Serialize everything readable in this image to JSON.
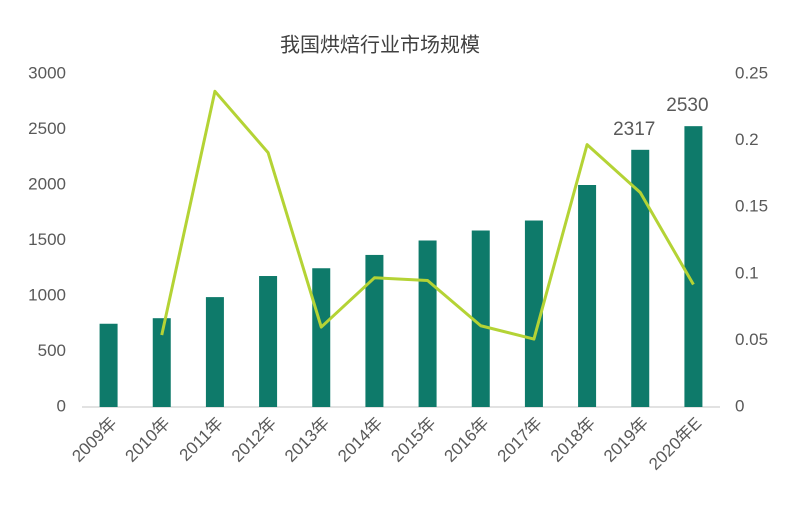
{
  "chart_data": {
    "type": "bar-line",
    "title": "我国烘焙行业市场规模",
    "categories": [
      "2009年",
      "2010年",
      "2011年",
      "2012年",
      "2013年",
      "2014年",
      "2015年",
      "2016年",
      "2017年",
      "2018年",
      "2019年",
      "2020年E"
    ],
    "series": [
      {
        "type": "bar",
        "color": "#0e7a6a",
        "values": [
          750,
          800,
          990,
          1180,
          1250,
          1370,
          1500,
          1590,
          1680,
          2000,
          2317,
          2530
        ],
        "value_labels": [
          null,
          null,
          null,
          null,
          null,
          null,
          null,
          null,
          null,
          null,
          "2317",
          "2530"
        ]
      },
      {
        "type": "line",
        "axis": "y2",
        "color": "#b4d335",
        "values": [
          null,
          0.054,
          0.237,
          0.191,
          0.06,
          0.097,
          0.095,
          0.061,
          0.051,
          0.197,
          0.161,
          0.092
        ]
      }
    ],
    "ylim": [
      0,
      3000
    ],
    "yticks": [
      0,
      500,
      1000,
      1500,
      2000,
      2500,
      3000
    ],
    "y2lim": [
      0,
      0.25
    ],
    "y2ticks": [
      0,
      0.05,
      0.1,
      0.15,
      0.2,
      0.25
    ]
  }
}
